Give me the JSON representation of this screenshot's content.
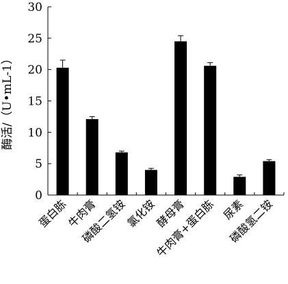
{
  "chart_data": {
    "type": "bar",
    "categories": [
      "蛋白胨",
      "牛肉膏",
      "磷酸二氢铵",
      "氯化铵",
      "酵母膏",
      "牛肉膏+蛋白胨",
      "尿素",
      "磷酸氢二铵"
    ],
    "values": [
      20.3,
      12.1,
      6.8,
      4.0,
      24.5,
      20.6,
      2.9,
      5.4
    ],
    "errors": [
      1.2,
      0.4,
      0.2,
      0.25,
      0.9,
      0.5,
      0.3,
      0.25
    ],
    "ylabel": "酶活/（U•mL-1）",
    "ylim": [
      0,
      30
    ],
    "yticks": [
      "0",
      "5",
      "10",
      "15",
      "20",
      "25",
      "30"
    ],
    "grid": false,
    "bar_color": "#000000"
  }
}
